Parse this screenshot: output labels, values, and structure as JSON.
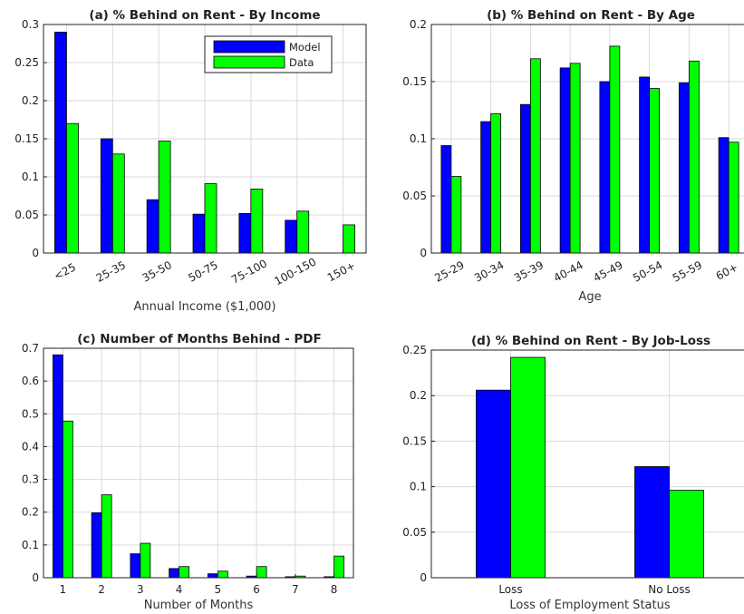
{
  "colors": {
    "model": "#0000ff",
    "data": "#00ff00",
    "grid": "#d9d9d9",
    "axis": "#222222"
  },
  "chart_data": [
    {
      "type": "bar",
      "title": "(a) % Behind on Rent - By Income",
      "xlabel": "Annual Income ($1,000)",
      "ylabel": "",
      "categories": [
        "<25",
        "25-35",
        "35-50",
        "50-75",
        "75-100",
        "100-150",
        "150+"
      ],
      "series": [
        {
          "name": "Model",
          "values": [
            0.29,
            0.15,
            0.07,
            0.051,
            0.052,
            0.043,
            0.0
          ]
        },
        {
          "name": "Data",
          "values": [
            0.17,
            0.13,
            0.147,
            0.091,
            0.084,
            0.055,
            0.037
          ]
        }
      ],
      "ylim": [
        0,
        0.3
      ],
      "yticks": [
        "0",
        "0.05",
        "0.1",
        "0.15",
        "0.2",
        "0.25",
        "0.3"
      ],
      "xtick_rotation": "rotated",
      "grid": true,
      "legend": {
        "position": "top-right",
        "entries": [
          "Model",
          "Data"
        ]
      }
    },
    {
      "type": "bar",
      "title": "(b) % Behind on Rent - By Age",
      "xlabel": "Age",
      "ylabel": "",
      "categories": [
        "25-29",
        "30-34",
        "35-39",
        "40-44",
        "45-49",
        "50-54",
        "55-59",
        "60+"
      ],
      "series": [
        {
          "name": "Model",
          "values": [
            0.094,
            0.115,
            0.13,
            0.162,
            0.15,
            0.154,
            0.149,
            0.101
          ]
        },
        {
          "name": "Data",
          "values": [
            0.067,
            0.122,
            0.17,
            0.166,
            0.181,
            0.144,
            0.168,
            0.097
          ]
        }
      ],
      "ylim": [
        0,
        0.2
      ],
      "yticks": [
        "0",
        "0.05",
        "0.1",
        "0.15",
        "0.2"
      ],
      "xtick_rotation": "rotated",
      "grid": true
    },
    {
      "type": "bar",
      "title": "(c) Number of Months Behind - PDF",
      "xlabel": "Number of Months",
      "ylabel": "",
      "categories": [
        "1",
        "2",
        "3",
        "4",
        "5",
        "6",
        "7",
        "8"
      ],
      "series": [
        {
          "name": "Model",
          "values": [
            0.68,
            0.198,
            0.073,
            0.028,
            0.012,
            0.005,
            0.003,
            0.003
          ]
        },
        {
          "name": "Data",
          "values": [
            0.478,
            0.253,
            0.105,
            0.034,
            0.02,
            0.034,
            0.005,
            0.066
          ]
        }
      ],
      "ylim": [
        0,
        0.7
      ],
      "yticks": [
        "0",
        "0.1",
        "0.2",
        "0.3",
        "0.4",
        "0.5",
        "0.6",
        "0.7"
      ],
      "xtick_rotation": "none",
      "grid": true
    },
    {
      "type": "bar",
      "title": "(d) % Behind on Rent - By Job-Loss",
      "xlabel": "Loss of Employment Status",
      "ylabel": "",
      "categories": [
        "Loss",
        "No Loss"
      ],
      "series": [
        {
          "name": "Model",
          "values": [
            0.206,
            0.122
          ]
        },
        {
          "name": "Data",
          "values": [
            0.242,
            0.096
          ]
        }
      ],
      "ylim": [
        0,
        0.25
      ],
      "yticks": [
        "0",
        "0.05",
        "0.1",
        "0.15",
        "0.2",
        "0.25"
      ],
      "xtick_rotation": "none",
      "grid": true
    }
  ]
}
